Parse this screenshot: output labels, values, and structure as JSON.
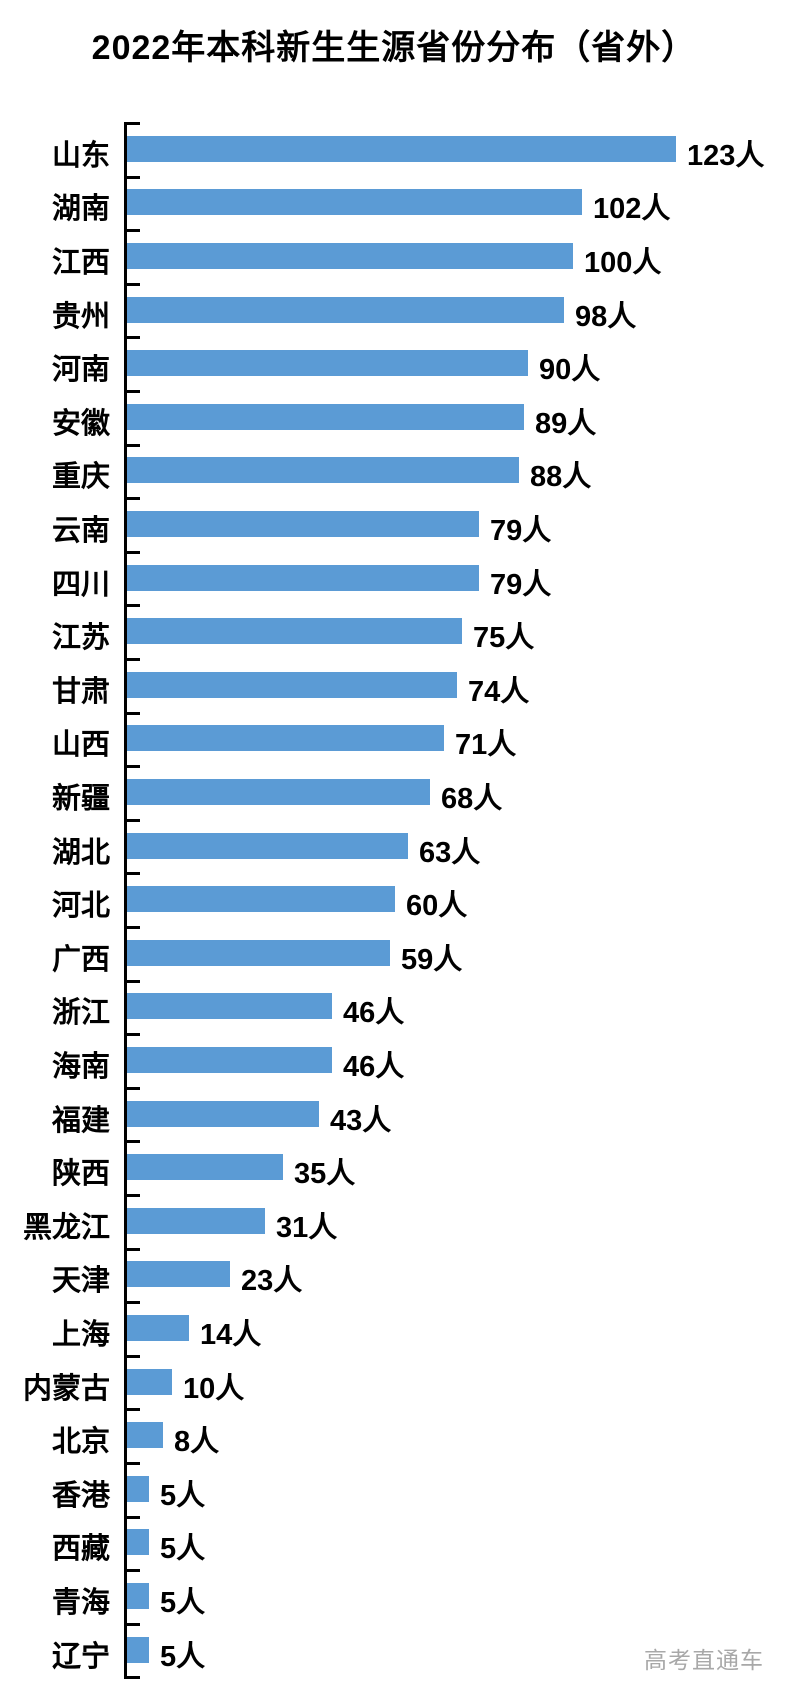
{
  "page": {
    "background": "#ffffff"
  },
  "chart_data": {
    "type": "bar",
    "orientation": "horizontal",
    "title": "2022年本科新生生源省份分布（省外）",
    "unit": "人",
    "bar_color": "#5B9BD5",
    "axis_color": "#000000",
    "text_color": "#000000",
    "gridlines": false,
    "legend": false,
    "data_labels": true,
    "xlim": [
      0,
      140
    ],
    "categories": [
      "山东",
      "湖南",
      "江西",
      "贵州",
      "河南",
      "安徽",
      "重庆",
      "云南",
      "四川",
      "江苏",
      "甘肃",
      "山西",
      "新疆",
      "湖北",
      "河北",
      "广西",
      "浙江",
      "海南",
      "福建",
      "陕西",
      "黑龙江",
      "天津",
      "上海",
      "内蒙古",
      "北京",
      "香港",
      "西藏",
      "青海",
      "辽宁"
    ],
    "values": [
      123,
      102,
      100,
      98,
      90,
      89,
      88,
      79,
      79,
      75,
      74,
      71,
      68,
      63,
      60,
      59,
      46,
      46,
      43,
      35,
      31,
      23,
      14,
      10,
      8,
      5,
      5,
      5,
      5
    ]
  },
  "watermark": {
    "text": "高考直通车",
    "color": "#a8a8a8"
  }
}
